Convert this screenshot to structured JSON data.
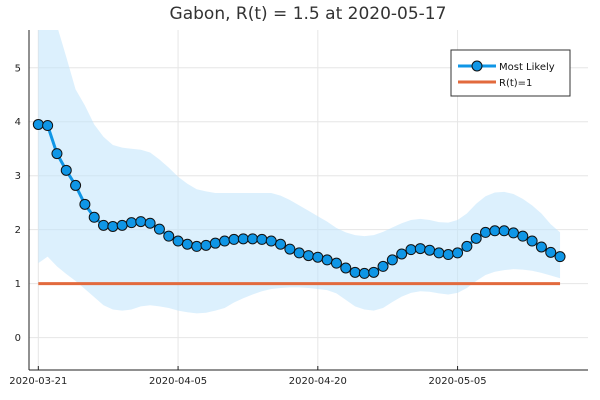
{
  "chart_data": {
    "type": "line",
    "title": "Gabon, R(t) = 1.5 at 2020-05-17",
    "xlabel": "",
    "ylabel": "",
    "x_start": "2020-03-21",
    "x_end": "2020-05-17",
    "xlim": [
      "2020-03-20",
      "2020-05-19"
    ],
    "ylim": [
      -0.6,
      5.7
    ],
    "x_ticks": [
      {
        "date": "2020-03-21",
        "label": "2020-03-21"
      },
      {
        "date": "2020-04-05",
        "label": "2020-04-05"
      },
      {
        "date": "2020-04-20",
        "label": "2020-04-20"
      },
      {
        "date": "2020-05-05",
        "label": "2020-05-05"
      }
    ],
    "y_ticks": [
      0,
      1,
      2,
      3,
      4,
      5
    ],
    "grid": true,
    "legend_position": "top-right",
    "series": [
      {
        "name": "Most Likely",
        "color": "#0f96e6",
        "marker": "circle",
        "values": [
          3.95,
          3.93,
          3.41,
          3.1,
          2.82,
          2.47,
          2.23,
          2.08,
          2.06,
          2.08,
          2.13,
          2.15,
          2.12,
          2.01,
          1.88,
          1.79,
          1.73,
          1.69,
          1.71,
          1.75,
          1.79,
          1.82,
          1.83,
          1.83,
          1.82,
          1.79,
          1.73,
          1.64,
          1.57,
          1.52,
          1.49,
          1.44,
          1.38,
          1.29,
          1.21,
          1.19,
          1.21,
          1.32,
          1.44,
          1.55,
          1.63,
          1.65,
          1.62,
          1.57,
          1.54,
          1.57,
          1.69,
          1.84,
          1.95,
          1.98,
          1.98,
          1.94,
          1.88,
          1.79,
          1.68,
          1.58,
          1.5
        ]
      },
      {
        "name": "R(t)=1",
        "color": "#e26a3d",
        "values": [
          1,
          1
        ]
      }
    ],
    "confidence_band": {
      "color": "#bfe3fb",
      "lower": [
        1.38,
        1.5,
        1.32,
        1.18,
        1.05,
        0.9,
        0.75,
        0.6,
        0.52,
        0.5,
        0.52,
        0.58,
        0.6,
        0.58,
        0.55,
        0.5,
        0.47,
        0.45,
        0.46,
        0.5,
        0.55,
        0.65,
        0.73,
        0.8,
        0.86,
        0.9,
        0.92,
        0.93,
        0.93,
        0.92,
        0.9,
        0.88,
        0.82,
        0.7,
        0.58,
        0.52,
        0.5,
        0.55,
        0.66,
        0.76,
        0.83,
        0.86,
        0.85,
        0.82,
        0.8,
        0.83,
        0.92,
        1.05,
        1.16,
        1.22,
        1.25,
        1.27,
        1.26,
        1.24,
        1.2,
        1.15,
        1.1
      ],
      "upper": [
        5.9,
        5.9,
        5.78,
        5.2,
        4.6,
        4.3,
        3.95,
        3.72,
        3.57,
        3.52,
        3.5,
        3.48,
        3.43,
        3.3,
        3.15,
        2.98,
        2.85,
        2.75,
        2.71,
        2.68,
        2.68,
        2.68,
        2.68,
        2.68,
        2.68,
        2.68,
        2.63,
        2.55,
        2.45,
        2.35,
        2.25,
        2.15,
        2.03,
        1.95,
        1.9,
        1.88,
        1.9,
        1.96,
        2.04,
        2.12,
        2.18,
        2.2,
        2.18,
        2.14,
        2.13,
        2.18,
        2.3,
        2.48,
        2.62,
        2.69,
        2.7,
        2.66,
        2.57,
        2.45,
        2.3,
        2.1,
        1.95
      ]
    }
  }
}
